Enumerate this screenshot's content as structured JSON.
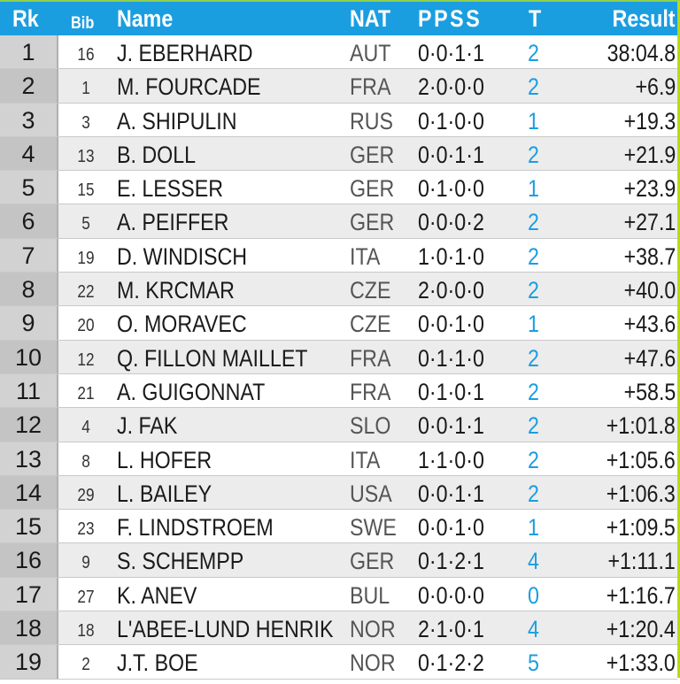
{
  "header": {
    "rank": "Rk",
    "bib": "Bib",
    "name": "Name",
    "nat": "NAT",
    "shooting": "PPSS",
    "total": "T",
    "result": "Result"
  },
  "rows": [
    {
      "rank": "1",
      "bib": "16",
      "name": "J. EBERHARD",
      "nat": "AUT",
      "shooting": "0·0·1·1",
      "total": "2",
      "result": "38:04.8"
    },
    {
      "rank": "2",
      "bib": "1",
      "name": "M. FOURCADE",
      "nat": "FRA",
      "shooting": "2·0·0·0",
      "total": "2",
      "result": "+6.9"
    },
    {
      "rank": "3",
      "bib": "3",
      "name": "A. SHIPULIN",
      "nat": "RUS",
      "shooting": "0·1·0·0",
      "total": "1",
      "result": "+19.3"
    },
    {
      "rank": "4",
      "bib": "13",
      "name": "B. DOLL",
      "nat": "GER",
      "shooting": "0·0·1·1",
      "total": "2",
      "result": "+21.9"
    },
    {
      "rank": "5",
      "bib": "15",
      "name": "E. LESSER",
      "nat": "GER",
      "shooting": "0·1·0·0",
      "total": "1",
      "result": "+23.9"
    },
    {
      "rank": "6",
      "bib": "5",
      "name": "A. PEIFFER",
      "nat": "GER",
      "shooting": "0·0·0·2",
      "total": "2",
      "result": "+27.1"
    },
    {
      "rank": "7",
      "bib": "19",
      "name": "D. WINDISCH",
      "nat": "ITA",
      "shooting": "1·0·1·0",
      "total": "2",
      "result": "+38.7"
    },
    {
      "rank": "8",
      "bib": "22",
      "name": "M. KRCMAR",
      "nat": "CZE",
      "shooting": "2·0·0·0",
      "total": "2",
      "result": "+40.0"
    },
    {
      "rank": "9",
      "bib": "20",
      "name": "O. MORAVEC",
      "nat": "CZE",
      "shooting": "0·0·1·0",
      "total": "1",
      "result": "+43.6"
    },
    {
      "rank": "10",
      "bib": "12",
      "name": "Q. FILLON MAILLET",
      "nat": "FRA",
      "shooting": "0·1·1·0",
      "total": "2",
      "result": "+47.6"
    },
    {
      "rank": "11",
      "bib": "21",
      "name": "A. GUIGONNAT",
      "nat": "FRA",
      "shooting": "0·1·0·1",
      "total": "2",
      "result": "+58.5"
    },
    {
      "rank": "12",
      "bib": "4",
      "name": "J. FAK",
      "nat": "SLO",
      "shooting": "0·0·1·1",
      "total": "2",
      "result": "+1:01.8"
    },
    {
      "rank": "13",
      "bib": "8",
      "name": "L. HOFER",
      "nat": "ITA",
      "shooting": "1·1·0·0",
      "total": "2",
      "result": "+1:05.6"
    },
    {
      "rank": "14",
      "bib": "29",
      "name": "L. BAILEY",
      "nat": "USA",
      "shooting": "0·0·1·1",
      "total": "2",
      "result": "+1:06.3"
    },
    {
      "rank": "15",
      "bib": "23",
      "name": "F. LINDSTROEM",
      "nat": "SWE",
      "shooting": "0·0·1·0",
      "total": "1",
      "result": "+1:09.5"
    },
    {
      "rank": "16",
      "bib": "9",
      "name": "S. SCHEMPP",
      "nat": "GER",
      "shooting": "0·1·2·1",
      "total": "4",
      "result": "+1:11.1"
    },
    {
      "rank": "17",
      "bib": "27",
      "name": "K. ANEV",
      "nat": "BUL",
      "shooting": "0·0·0·0",
      "total": "0",
      "result": "+1:16.7"
    },
    {
      "rank": "18",
      "bib": "18",
      "name": "L'ABEE-LUND HENRIK",
      "nat": "NOR",
      "shooting": "2·1·0·1",
      "total": "4",
      "result": "+1:20.4"
    },
    {
      "rank": "19",
      "bib": "2",
      "name": "J.T. BOE",
      "nat": "NOR",
      "shooting": "0·1·2·2",
      "total": "5",
      "result": "+1:33.0"
    }
  ],
  "colors": {
    "header_bg": "#1b9ee0",
    "penalty_total": "#1b9ee0",
    "rank_column_bg": "#d2d2d2"
  }
}
